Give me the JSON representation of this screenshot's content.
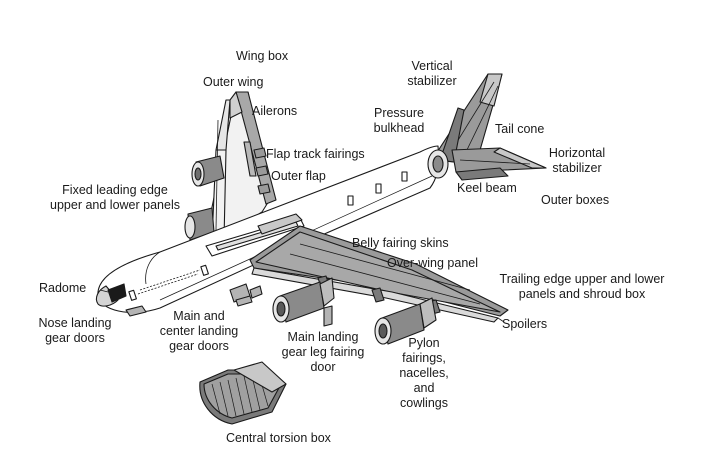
{
  "labels": {
    "wing_box": "Wing box",
    "outer_wing": "Outer wing",
    "ailerons": "Ailerons",
    "flap_track_fairings": "Flap track fairings",
    "outer_flap": "Outer flap",
    "fixed_leading_edge_1": "Fixed leading edge",
    "fixed_leading_edge_2": "upper and lower panels",
    "vertical_stabilizer_1": "Vertical",
    "vertical_stabilizer_2": "stabilizer",
    "pressure_bulkhead_1": "Pressure",
    "pressure_bulkhead_2": "bulkhead",
    "tail_cone": "Tail cone",
    "horizontal_stabilizer_1": "Horizontal",
    "horizontal_stabilizer_2": "stabilizer",
    "keel_beam": "Keel beam",
    "outer_boxes": "Outer boxes",
    "belly_fairing_skins": "Belly fairing skins",
    "over_wing_panel": "Over-wing panel",
    "trailing_edge_1": "Trailing edge upper and lower",
    "trailing_edge_2": "panels and shroud box",
    "spoilers": "Spoilers",
    "radome": "Radome",
    "nose_landing_gear_doors_1": "Nose landing",
    "nose_landing_gear_doors_2": "gear doors",
    "main_center_gear_doors_1": "Main and",
    "main_center_gear_doors_2": "center landing",
    "main_center_gear_doors_3": "gear doors",
    "main_gear_leg_fairing_1": "Main landing",
    "main_gear_leg_fairing_2": "gear leg fairing",
    "main_gear_leg_fairing_3": "door",
    "pylon_1": "Pylon",
    "pylon_2": "fairings,",
    "pylon_3": "nacelles,",
    "pylon_4": "and",
    "pylon_5": "cowlings",
    "central_torsion_box": "Central torsion box"
  },
  "colors": {
    "outline": "#1a1a1a",
    "component_fill": "#9a9a9a",
    "dark_fill": "#6e6e6e",
    "light_fill": "#d4d4d4"
  }
}
